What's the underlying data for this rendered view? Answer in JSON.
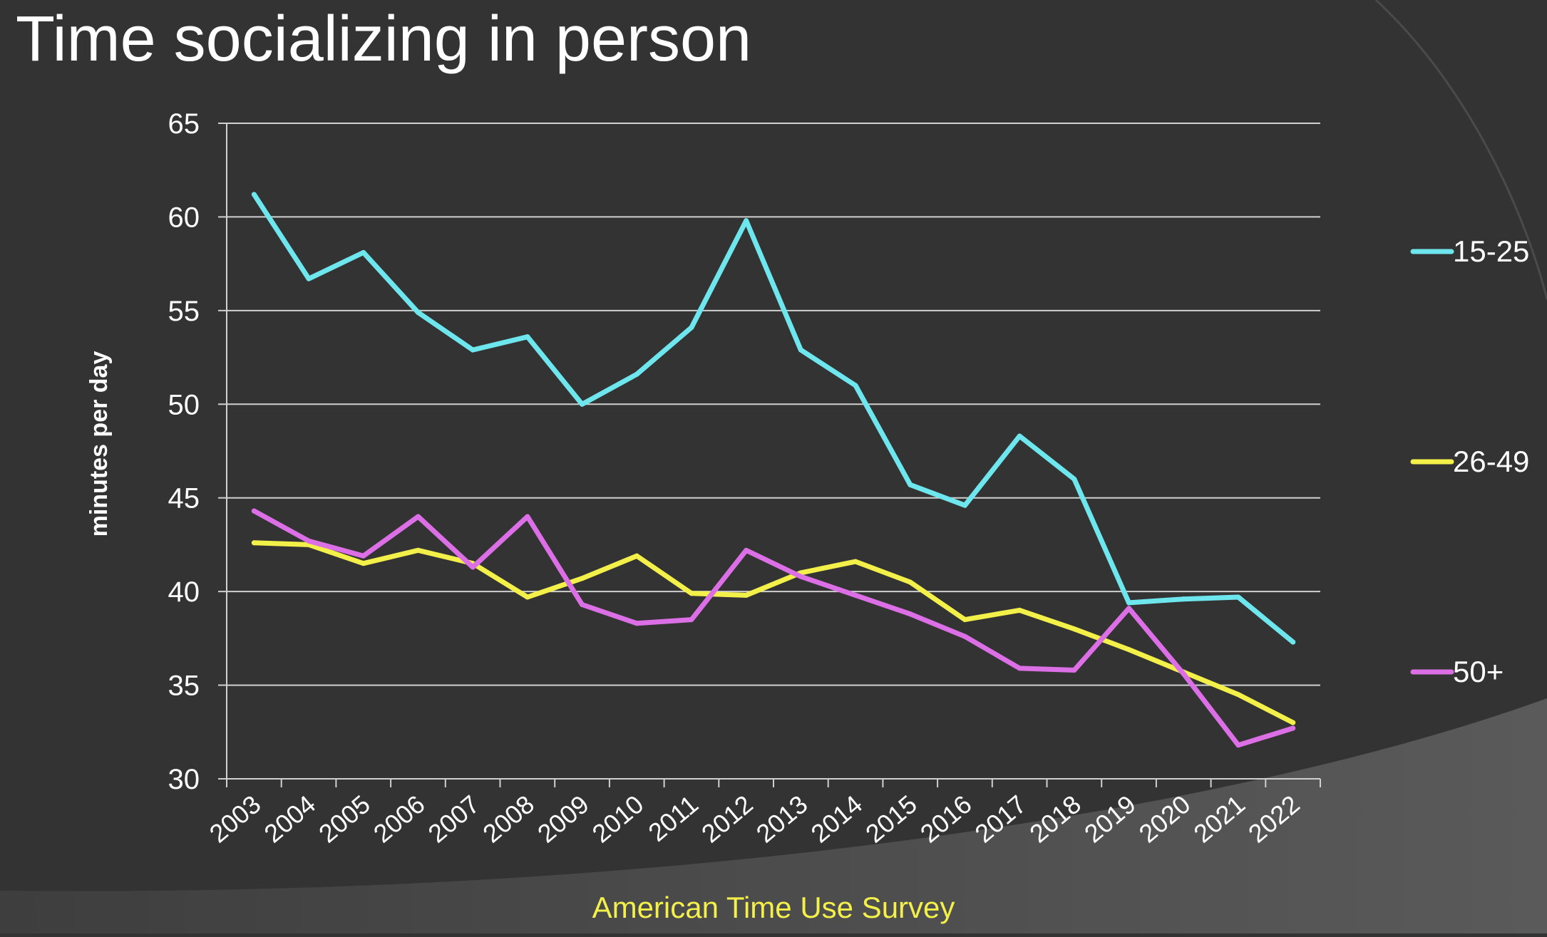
{
  "page": {
    "title": "Time socializing in person",
    "source": "American Time Use Survey"
  },
  "colors": {
    "background": "#333333",
    "plot_background": "#3a3a3a",
    "gridline": "#d0d0d0",
    "text": "#ffffff",
    "source_text": "#f4f04a"
  },
  "chart_data": {
    "type": "line",
    "title": "",
    "xlabel": "",
    "ylabel": "minutes per day",
    "categories": [
      "2003",
      "2004",
      "2005",
      "2006",
      "2007",
      "2008",
      "2009",
      "2010",
      "2011",
      "2012",
      "2013",
      "2014",
      "2015",
      "2016",
      "2017",
      "2018",
      "2019",
      "2020",
      "2021",
      "2022"
    ],
    "ylim": [
      30,
      65
    ],
    "yticks": [
      "30",
      "35",
      "40",
      "45",
      "50",
      "55",
      "60",
      "65"
    ],
    "grid": true,
    "legend_position": "right",
    "series": [
      {
        "name": "15-25",
        "color": "#6ee6ee",
        "values": [
          61.2,
          56.7,
          58.1,
          54.9,
          52.9,
          53.6,
          50.0,
          51.6,
          54.1,
          59.8,
          52.9,
          51.0,
          45.7,
          44.6,
          48.3,
          46.0,
          39.4,
          39.6,
          39.7,
          37.3
        ]
      },
      {
        "name": "26-49",
        "color": "#f4f04a",
        "values": [
          42.6,
          42.5,
          41.5,
          42.2,
          41.5,
          39.7,
          40.7,
          41.9,
          39.9,
          39.8,
          41.0,
          41.6,
          40.5,
          38.5,
          39.0,
          38.0,
          36.9,
          35.7,
          34.5,
          33.0
        ]
      },
      {
        "name": "50+",
        "color": "#dc6fe6",
        "values": [
          44.3,
          42.7,
          41.9,
          44.0,
          41.3,
          44.0,
          39.3,
          38.3,
          38.5,
          42.2,
          40.8,
          39.8,
          38.8,
          37.6,
          35.9,
          35.8,
          39.1,
          35.6,
          31.8,
          32.7
        ]
      }
    ]
  }
}
